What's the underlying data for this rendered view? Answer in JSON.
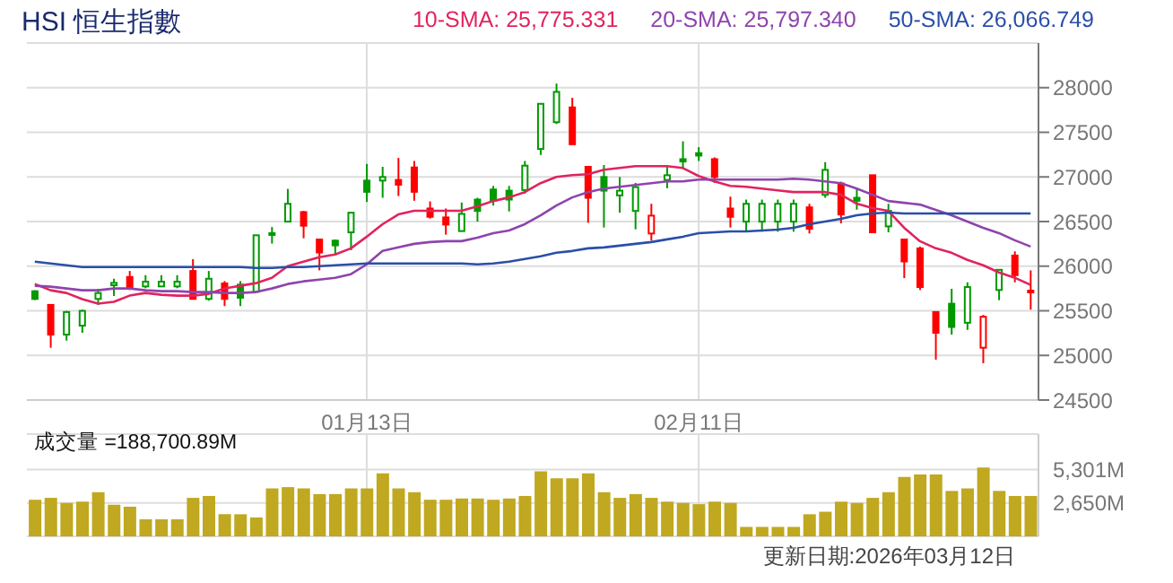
{
  "chart_data": [
    {
      "type": "candlestick",
      "title": "HSI 恒生指數",
      "legend": "top right",
      "marker": "none",
      "grid": true,
      "categories": [
        null,
        null,
        null,
        null,
        null,
        null,
        null,
        null,
        null,
        null,
        null,
        null,
        null,
        null,
        null,
        null,
        null,
        null,
        null,
        null,
        null,
        "01月13日",
        null,
        null,
        null,
        null,
        null,
        null,
        null,
        null,
        null,
        null,
        null,
        null,
        null,
        null,
        null,
        null,
        null,
        null,
        null,
        null,
        "02月11日",
        null,
        null,
        null,
        null,
        null,
        null,
        null,
        null,
        null,
        null,
        null,
        null,
        null,
        null,
        null,
        null,
        null,
        null,
        null,
        null,
        null
      ],
      "ohlc": [
        [
          25719,
          25730,
          25620,
          25633
        ],
        [
          25566,
          25566,
          25086,
          25233
        ],
        [
          25233,
          25499,
          25166,
          25486
        ],
        [
          25333,
          25513,
          25253,
          25499
        ],
        [
          25633,
          25746,
          25566,
          25699
        ],
        [
          25786,
          25859,
          25666,
          25813
        ],
        [
          25879,
          25946,
          25733,
          25753
        ],
        [
          25773,
          25899,
          25753,
          25826
        ],
        [
          25773,
          25899,
          25766,
          25826
        ],
        [
          25773,
          25899,
          25753,
          25826
        ],
        [
          25946,
          26079,
          25633,
          25633
        ],
        [
          25633,
          25946,
          25613,
          25859
        ],
        [
          25806,
          25833,
          25553,
          25633
        ],
        [
          25793,
          25833,
          25553,
          25646
        ],
        [
          25713,
          26346,
          25713,
          26346
        ],
        [
          26370,
          26439,
          26253,
          26350
        ],
        [
          26499,
          26866,
          26499,
          26699
        ],
        [
          26606,
          26619,
          26313,
          26453
        ],
        [
          26299,
          26299,
          25953,
          26153
        ],
        [
          26286,
          26299,
          26133,
          26233
        ],
        [
          26379,
          26599,
          26179,
          26599
        ],
        [
          26959,
          27146,
          26719,
          26833
        ],
        [
          26959,
          27113,
          26766,
          26999
        ],
        [
          26966,
          27213,
          26786,
          26913
        ],
        [
          27106,
          27179,
          26733,
          26833
        ],
        [
          26646,
          26726,
          26533,
          26553
        ],
        [
          26546,
          26646,
          26353,
          26466
        ],
        [
          26393,
          26713,
          26393,
          26586
        ],
        [
          26746,
          26766,
          26499,
          26619
        ],
        [
          26859,
          26899,
          26679,
          26733
        ],
        [
          26846,
          26899,
          26613,
          26746
        ],
        [
          26853,
          27179,
          26813,
          27126
        ],
        [
          27313,
          27819,
          27246,
          27819
        ],
        [
          27613,
          28046,
          27593,
          27953
        ],
        [
          27779,
          27886,
          27366,
          27366
        ],
        [
          27113,
          27113,
          26486,
          26766
        ],
        [
          26999,
          27133,
          26433,
          26846
        ],
        [
          26793,
          26999,
          26599,
          26846
        ],
        [
          26619,
          26933,
          26413,
          26886
        ],
        [
          26366,
          26699,
          26286,
          26566
        ],
        [
          26966,
          27113,
          26873,
          27019
        ],
        [
          27199,
          27399,
          27099,
          27173
        ],
        [
          27266,
          27333,
          27179,
          27239
        ],
        [
          27199,
          27219,
          26933,
          26999
        ],
        [
          26646,
          26779,
          26433,
          26553
        ],
        [
          26499,
          26746,
          26386,
          26699
        ],
        [
          26499,
          26746,
          26386,
          26699
        ],
        [
          26499,
          26746,
          26386,
          26699
        ],
        [
          26499,
          26746,
          26386,
          26699
        ],
        [
          26659,
          26699,
          26366,
          26419
        ],
        [
          26799,
          27166,
          26766,
          27079
        ],
        [
          26926,
          26946,
          26479,
          26579
        ],
        [
          26766,
          26866,
          26633,
          26733
        ],
        [
          27019,
          27019,
          26379,
          26379
        ],
        [
          26446,
          26699,
          26379,
          26619
        ],
        [
          26299,
          26299,
          25866,
          26053
        ],
        [
          26199,
          26219,
          25733,
          25766
        ],
        [
          25486,
          25486,
          24953,
          25253
        ],
        [
          25579,
          25746,
          25233,
          25319
        ],
        [
          25366,
          25819,
          25286,
          25766
        ],
        [
          25086,
          25453,
          24913,
          25433
        ],
        [
          25733,
          25959,
          25619,
          25959
        ],
        [
          26119,
          26166,
          25819,
          25899
        ],
        [
          25726,
          25953,
          25513,
          25719
        ]
      ],
      "colors": [
        "#009900",
        "#ff0000",
        "#009900",
        "#009900",
        "#009900",
        "#009900",
        "#ff0000",
        "#009900",
        "#009900",
        "#009900",
        "#ff0000",
        "#009900",
        "#ff0000",
        "#009900",
        "#009900",
        "#009900",
        "#009900",
        "#ff0000",
        "#ff0000",
        "#009900",
        "#009900",
        "#009900",
        "#009900",
        "#ff0000",
        "#ff0000",
        "#ff0000",
        "#ff0000",
        "#009900",
        "#009900",
        "#009900",
        "#009900",
        "#009900",
        "#009900",
        "#009900",
        "#ff0000",
        "#ff0000",
        "#009900",
        "#009900",
        "#009900",
        "#ff0000",
        "#009900",
        "#009900",
        "#009900",
        "#ff0000",
        "#ff0000",
        "#009900",
        "#009900",
        "#009900",
        "#009900",
        "#ff0000",
        "#009900",
        "#ff0000",
        "#009900",
        "#ff0000",
        "#009900",
        "#ff0000",
        "#ff0000",
        "#ff0000",
        "#009900",
        "#009900",
        "#ff0000",
        "#009900",
        "#ff0000",
        "#ff0000"
      ],
      "series": [
        {
          "type": "line",
          "name": "10-SMA: 25,775.331",
          "color": "#e0245e",
          "values": [
            25800,
            25730,
            25700,
            25630,
            25580,
            25600,
            25670,
            25700,
            25680,
            25670,
            25670,
            25690,
            25750,
            25780,
            25810,
            25870,
            26000,
            26050,
            26100,
            26130,
            26200,
            26330,
            26470,
            26580,
            26620,
            26620,
            26620,
            26620,
            26670,
            26730,
            26770,
            26830,
            26930,
            27000,
            27020,
            27030,
            27080,
            27100,
            27120,
            27120,
            27120,
            27100,
            27010,
            26950,
            26900,
            26890,
            26870,
            26850,
            26830,
            26830,
            26830,
            26800,
            26700,
            26650,
            26620,
            26430,
            26280,
            26200,
            26150,
            26070,
            26010,
            25930,
            25870,
            25790
          ]
        },
        {
          "type": "line",
          "name": "20-SMA: 25,797.340",
          "color": "#8e44ad",
          "values": [
            25780,
            25770,
            25750,
            25730,
            25730,
            25750,
            25750,
            25730,
            25720,
            25720,
            25710,
            25710,
            25700,
            25700,
            25710,
            25750,
            25800,
            25830,
            25850,
            25870,
            25910,
            26020,
            26170,
            26210,
            26250,
            26270,
            26280,
            26280,
            26320,
            26370,
            26400,
            26470,
            26570,
            26680,
            26770,
            26830,
            26870,
            26890,
            26910,
            26930,
            26950,
            26950,
            26970,
            26970,
            26970,
            26970,
            26970,
            26970,
            26980,
            26970,
            26950,
            26930,
            26870,
            26800,
            26730,
            26710,
            26690,
            26630,
            26570,
            26500,
            26430,
            26370,
            26290,
            26220
          ]
        },
        {
          "type": "line",
          "name": "50-SMA: 26,066.749",
          "color": "#2a4fa8",
          "values": [
            26050,
            26030,
            26010,
            25990,
            25990,
            25990,
            25990,
            25990,
            25990,
            25990,
            25990,
            25990,
            25990,
            25990,
            25980,
            25980,
            25990,
            25990,
            26000,
            26010,
            26020,
            26030,
            26030,
            26030,
            26030,
            26030,
            26030,
            26030,
            26020,
            26030,
            26050,
            26080,
            26110,
            26150,
            26170,
            26200,
            26210,
            26230,
            26250,
            26270,
            26300,
            26330,
            26370,
            26380,
            26390,
            26390,
            26400,
            26410,
            26430,
            26470,
            26500,
            26530,
            26570,
            26590,
            26600,
            26590,
            26590,
            26590,
            26590,
            26590,
            26590,
            26590,
            26590,
            26590
          ]
        }
      ],
      "ylim": [
        24500,
        28500
      ],
      "yticks": [
        24500,
        25000,
        25500,
        26000,
        26500,
        27000,
        27500,
        28000
      ]
    },
    {
      "type": "bar",
      "title": "成交量 =188,700.89M",
      "color": "#c0a820",
      "grid": true,
      "tick_labels": "y",
      "categories": [
        null,
        null,
        null,
        null,
        null,
        null,
        null,
        null,
        null,
        null,
        null,
        null,
        null,
        null,
        null,
        null,
        null,
        null,
        null,
        null,
        null,
        null,
        null,
        null,
        null,
        null,
        null,
        null,
        null,
        null,
        null,
        null,
        null,
        null,
        null,
        null,
        null,
        null,
        null,
        null,
        null,
        null,
        null,
        null,
        null,
        null,
        null,
        null,
        null,
        null,
        null,
        null,
        null,
        null,
        null,
        null,
        null,
        null,
        null,
        null,
        null,
        null,
        null,
        null
      ],
      "values": [
        2900,
        3050,
        2650,
        2750,
        3500,
        2500,
        2350,
        1350,
        1350,
        1350,
        3050,
        3200,
        1750,
        1750,
        1500,
        3800,
        3900,
        3800,
        3350,
        3350,
        3800,
        3800,
        5000,
        3800,
        3500,
        2900,
        2900,
        3000,
        3000,
        2900,
        3000,
        3200,
        5150,
        4600,
        4600,
        5000,
        3500,
        3050,
        3350,
        3050,
        2750,
        2650,
        2550,
        2750,
        2650,
        750,
        750,
        750,
        750,
        1750,
        1950,
        2750,
        2650,
        3050,
        3500,
        4700,
        4900,
        4900,
        3600,
        3800,
        5450,
        3600,
        3200,
        3200
      ],
      "ylim": [
        0,
        8100
      ],
      "yticks": [
        {
          "value": 2650,
          "label": "2,650M"
        },
        {
          "value": 5301,
          "label": "5,301M"
        }
      ],
      "annotations": [
        "更新日期:2026年03月12日"
      ]
    }
  ]
}
